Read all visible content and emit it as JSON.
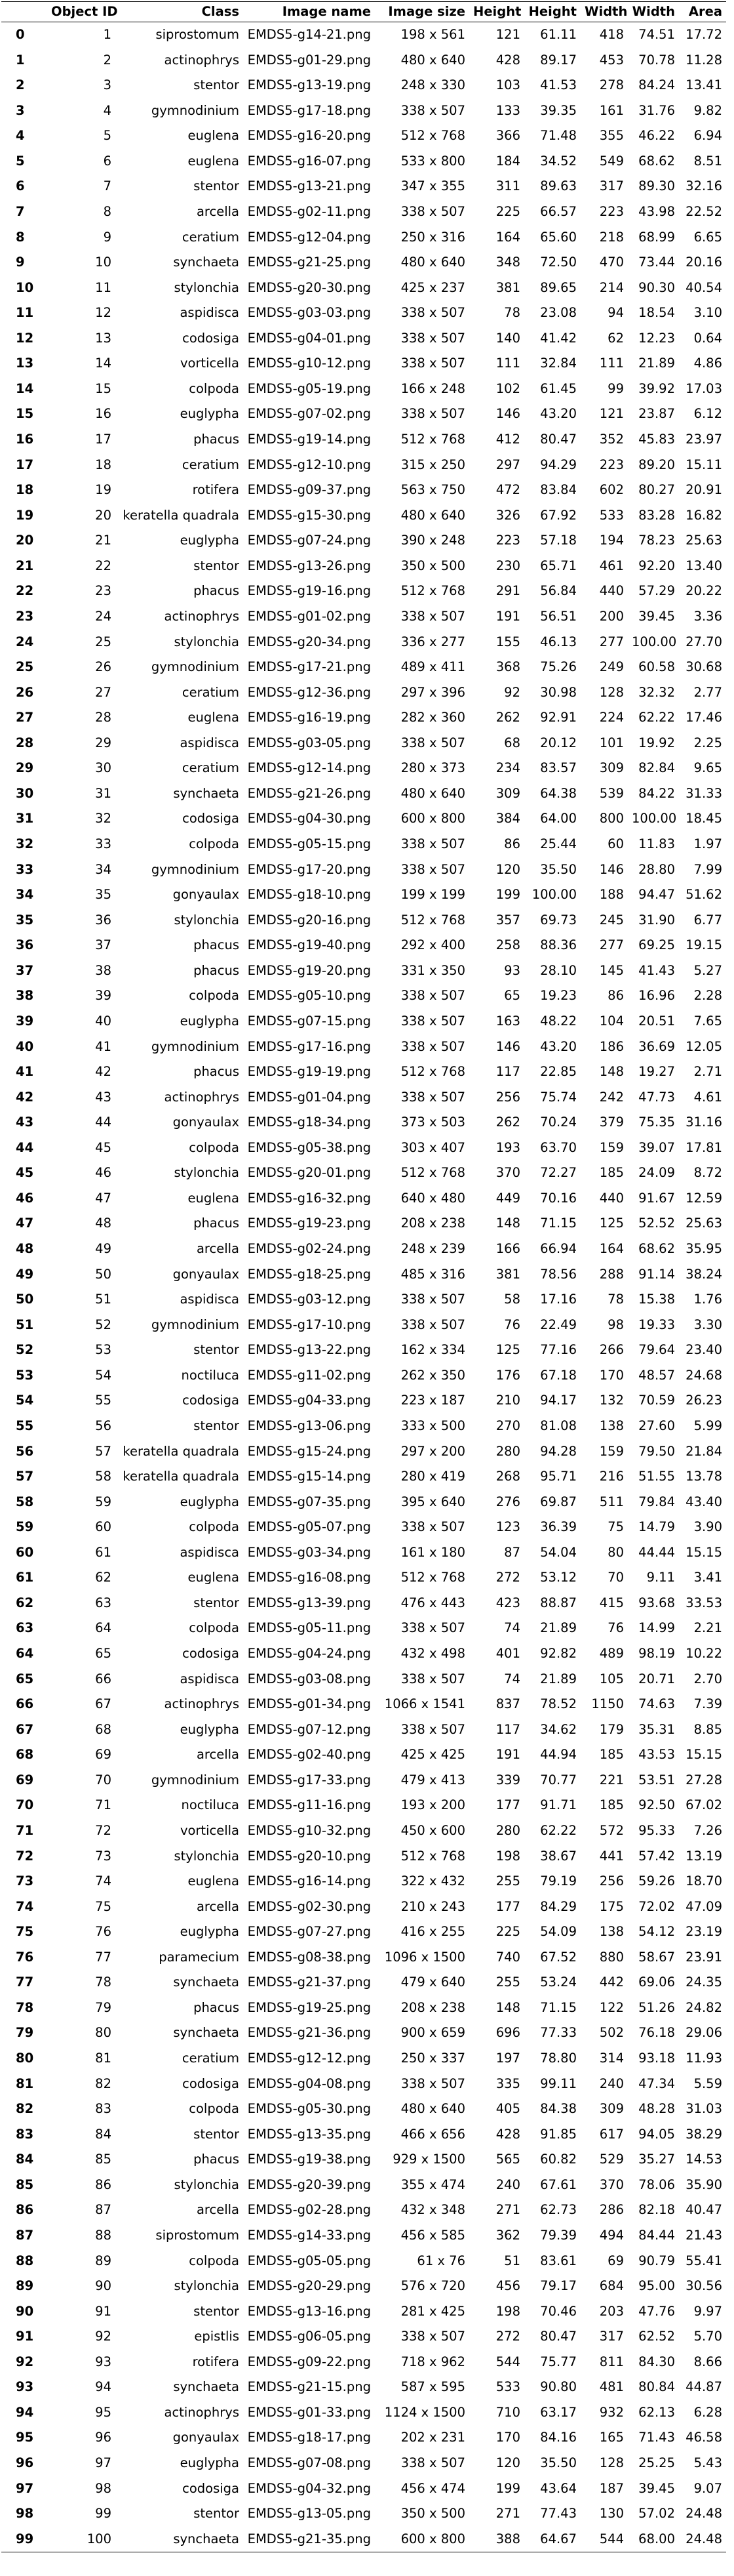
{
  "table": {
    "columns": [
      "",
      "Object ID",
      "Class",
      "Image name",
      "Image size",
      "Height",
      "Height",
      "Width",
      "Width",
      "Area"
    ],
    "rows": [
      [
        "0",
        "1",
        "siprostomum",
        "EMDS5-g14-21.png",
        "198 x 561",
        "121",
        "61.11",
        "418",
        "74.51",
        "17.72"
      ],
      [
        "1",
        "2",
        "actinophrys",
        "EMDS5-g01-29.png",
        "480 x 640",
        "428",
        "89.17",
        "453",
        "70.78",
        "11.28"
      ],
      [
        "2",
        "3",
        "stentor",
        "EMDS5-g13-19.png",
        "248 x 330",
        "103",
        "41.53",
        "278",
        "84.24",
        "13.41"
      ],
      [
        "3",
        "4",
        "gymnodinium",
        "EMDS5-g17-18.png",
        "338 x 507",
        "133",
        "39.35",
        "161",
        "31.76",
        "9.82"
      ],
      [
        "4",
        "5",
        "euglena",
        "EMDS5-g16-20.png",
        "512 x 768",
        "366",
        "71.48",
        "355",
        "46.22",
        "6.94"
      ],
      [
        "5",
        "6",
        "euglena",
        "EMDS5-g16-07.png",
        "533 x 800",
        "184",
        "34.52",
        "549",
        "68.62",
        "8.51"
      ],
      [
        "6",
        "7",
        "stentor",
        "EMDS5-g13-21.png",
        "347 x 355",
        "311",
        "89.63",
        "317",
        "89.30",
        "32.16"
      ],
      [
        "7",
        "8",
        "arcella",
        "EMDS5-g02-11.png",
        "338 x 507",
        "225",
        "66.57",
        "223",
        "43.98",
        "22.52"
      ],
      [
        "8",
        "9",
        "ceratium",
        "EMDS5-g12-04.png",
        "250 x 316",
        "164",
        "65.60",
        "218",
        "68.99",
        "6.65"
      ],
      [
        "9",
        "10",
        "synchaeta",
        "EMDS5-g21-25.png",
        "480 x 640",
        "348",
        "72.50",
        "470",
        "73.44",
        "20.16"
      ],
      [
        "10",
        "11",
        "stylonchia",
        "EMDS5-g20-30.png",
        "425 x 237",
        "381",
        "89.65",
        "214",
        "90.30",
        "40.54"
      ],
      [
        "11",
        "12",
        "aspidisca",
        "EMDS5-g03-03.png",
        "338 x 507",
        "78",
        "23.08",
        "94",
        "18.54",
        "3.10"
      ],
      [
        "12",
        "13",
        "codosiga",
        "EMDS5-g04-01.png",
        "338 x 507",
        "140",
        "41.42",
        "62",
        "12.23",
        "0.64"
      ],
      [
        "13",
        "14",
        "vorticella",
        "EMDS5-g10-12.png",
        "338 x 507",
        "111",
        "32.84",
        "111",
        "21.89",
        "4.86"
      ],
      [
        "14",
        "15",
        "colpoda",
        "EMDS5-g05-19.png",
        "166 x 248",
        "102",
        "61.45",
        "99",
        "39.92",
        "17.03"
      ],
      [
        "15",
        "16",
        "euglypha",
        "EMDS5-g07-02.png",
        "338 x 507",
        "146",
        "43.20",
        "121",
        "23.87",
        "6.12"
      ],
      [
        "16",
        "17",
        "phacus",
        "EMDS5-g19-14.png",
        "512 x 768",
        "412",
        "80.47",
        "352",
        "45.83",
        "23.97"
      ],
      [
        "17",
        "18",
        "ceratium",
        "EMDS5-g12-10.png",
        "315 x 250",
        "297",
        "94.29",
        "223",
        "89.20",
        "15.11"
      ],
      [
        "18",
        "19",
        "rotifera",
        "EMDS5-g09-37.png",
        "563 x 750",
        "472",
        "83.84",
        "602",
        "80.27",
        "20.91"
      ],
      [
        "19",
        "20",
        "keratella quadrala",
        "EMDS5-g15-30.png",
        "480 x 640",
        "326",
        "67.92",
        "533",
        "83.28",
        "16.82"
      ],
      [
        "20",
        "21",
        "euglypha",
        "EMDS5-g07-24.png",
        "390 x 248",
        "223",
        "57.18",
        "194",
        "78.23",
        "25.63"
      ],
      [
        "21",
        "22",
        "stentor",
        "EMDS5-g13-26.png",
        "350 x 500",
        "230",
        "65.71",
        "461",
        "92.20",
        "13.40"
      ],
      [
        "22",
        "23",
        "phacus",
        "EMDS5-g19-16.png",
        "512 x 768",
        "291",
        "56.84",
        "440",
        "57.29",
        "20.22"
      ],
      [
        "23",
        "24",
        "actinophrys",
        "EMDS5-g01-02.png",
        "338 x 507",
        "191",
        "56.51",
        "200",
        "39.45",
        "3.36"
      ],
      [
        "24",
        "25",
        "stylonchia",
        "EMDS5-g20-34.png",
        "336 x 277",
        "155",
        "46.13",
        "277",
        "100.00",
        "27.70"
      ],
      [
        "25",
        "26",
        "gymnodinium",
        "EMDS5-g17-21.png",
        "489 x 411",
        "368",
        "75.26",
        "249",
        "60.58",
        "30.68"
      ],
      [
        "26",
        "27",
        "ceratium",
        "EMDS5-g12-36.png",
        "297 x 396",
        "92",
        "30.98",
        "128",
        "32.32",
        "2.77"
      ],
      [
        "27",
        "28",
        "euglena",
        "EMDS5-g16-19.png",
        "282 x 360",
        "262",
        "92.91",
        "224",
        "62.22",
        "17.46"
      ],
      [
        "28",
        "29",
        "aspidisca",
        "EMDS5-g03-05.png",
        "338 x 507",
        "68",
        "20.12",
        "101",
        "19.92",
        "2.25"
      ],
      [
        "29",
        "30",
        "ceratium",
        "EMDS5-g12-14.png",
        "280 x 373",
        "234",
        "83.57",
        "309",
        "82.84",
        "9.65"
      ],
      [
        "30",
        "31",
        "synchaeta",
        "EMDS5-g21-26.png",
        "480 x 640",
        "309",
        "64.38",
        "539",
        "84.22",
        "31.33"
      ],
      [
        "31",
        "32",
        "codosiga",
        "EMDS5-g04-30.png",
        "600 x 800",
        "384",
        "64.00",
        "800",
        "100.00",
        "18.45"
      ],
      [
        "32",
        "33",
        "colpoda",
        "EMDS5-g05-15.png",
        "338 x 507",
        "86",
        "25.44",
        "60",
        "11.83",
        "1.97"
      ],
      [
        "33",
        "34",
        "gymnodinium",
        "EMDS5-g17-20.png",
        "338 x 507",
        "120",
        "35.50",
        "146",
        "28.80",
        "7.99"
      ],
      [
        "34",
        "35",
        "gonyaulax",
        "EMDS5-g18-10.png",
        "199 x 199",
        "199",
        "100.00",
        "188",
        "94.47",
        "51.62"
      ],
      [
        "35",
        "36",
        "stylonchia",
        "EMDS5-g20-16.png",
        "512 x 768",
        "357",
        "69.73",
        "245",
        "31.90",
        "6.77"
      ],
      [
        "36",
        "37",
        "phacus",
        "EMDS5-g19-40.png",
        "292 x 400",
        "258",
        "88.36",
        "277",
        "69.25",
        "19.15"
      ],
      [
        "37",
        "38",
        "phacus",
        "EMDS5-g19-20.png",
        "331 x 350",
        "93",
        "28.10",
        "145",
        "41.43",
        "5.27"
      ],
      [
        "38",
        "39",
        "colpoda",
        "EMDS5-g05-10.png",
        "338 x 507",
        "65",
        "19.23",
        "86",
        "16.96",
        "2.28"
      ],
      [
        "39",
        "40",
        "euglypha",
        "EMDS5-g07-15.png",
        "338 x 507",
        "163",
        "48.22",
        "104",
        "20.51",
        "7.65"
      ],
      [
        "40",
        "41",
        "gymnodinium",
        "EMDS5-g17-16.png",
        "338 x 507",
        "146",
        "43.20",
        "186",
        "36.69",
        "12.05"
      ],
      [
        "41",
        "42",
        "phacus",
        "EMDS5-g19-19.png",
        "512 x 768",
        "117",
        "22.85",
        "148",
        "19.27",
        "2.71"
      ],
      [
        "42",
        "43",
        "actinophrys",
        "EMDS5-g01-04.png",
        "338 x 507",
        "256",
        "75.74",
        "242",
        "47.73",
        "4.61"
      ],
      [
        "43",
        "44",
        "gonyaulax",
        "EMDS5-g18-34.png",
        "373 x 503",
        "262",
        "70.24",
        "379",
        "75.35",
        "31.16"
      ],
      [
        "44",
        "45",
        "colpoda",
        "EMDS5-g05-38.png",
        "303 x 407",
        "193",
        "63.70",
        "159",
        "39.07",
        "17.81"
      ],
      [
        "45",
        "46",
        "stylonchia",
        "EMDS5-g20-01.png",
        "512 x 768",
        "370",
        "72.27",
        "185",
        "24.09",
        "8.72"
      ],
      [
        "46",
        "47",
        "euglena",
        "EMDS5-g16-32.png",
        "640 x 480",
        "449",
        "70.16",
        "440",
        "91.67",
        "12.59"
      ],
      [
        "47",
        "48",
        "phacus",
        "EMDS5-g19-23.png",
        "208 x 238",
        "148",
        "71.15",
        "125",
        "52.52",
        "25.63"
      ],
      [
        "48",
        "49",
        "arcella",
        "EMDS5-g02-24.png",
        "248 x 239",
        "166",
        "66.94",
        "164",
        "68.62",
        "35.95"
      ],
      [
        "49",
        "50",
        "gonyaulax",
        "EMDS5-g18-25.png",
        "485 x 316",
        "381",
        "78.56",
        "288",
        "91.14",
        "38.24"
      ],
      [
        "50",
        "51",
        "aspidisca",
        "EMDS5-g03-12.png",
        "338 x 507",
        "58",
        "17.16",
        "78",
        "15.38",
        "1.76"
      ],
      [
        "51",
        "52",
        "gymnodinium",
        "EMDS5-g17-10.png",
        "338 x 507",
        "76",
        "22.49",
        "98",
        "19.33",
        "3.30"
      ],
      [
        "52",
        "53",
        "stentor",
        "EMDS5-g13-22.png",
        "162 x 334",
        "125",
        "77.16",
        "266",
        "79.64",
        "23.40"
      ],
      [
        "53",
        "54",
        "noctiluca",
        "EMDS5-g11-02.png",
        "262 x 350",
        "176",
        "67.18",
        "170",
        "48.57",
        "24.68"
      ],
      [
        "54",
        "55",
        "codosiga",
        "EMDS5-g04-33.png",
        "223 x 187",
        "210",
        "94.17",
        "132",
        "70.59",
        "26.23"
      ],
      [
        "55",
        "56",
        "stentor",
        "EMDS5-g13-06.png",
        "333 x 500",
        "270",
        "81.08",
        "138",
        "27.60",
        "5.99"
      ],
      [
        "56",
        "57",
        "keratella quadrala",
        "EMDS5-g15-24.png",
        "297 x 200",
        "280",
        "94.28",
        "159",
        "79.50",
        "21.84"
      ],
      [
        "57",
        "58",
        "keratella quadrala",
        "EMDS5-g15-14.png",
        "280 x 419",
        "268",
        "95.71",
        "216",
        "51.55",
        "13.78"
      ],
      [
        "58",
        "59",
        "euglypha",
        "EMDS5-g07-35.png",
        "395 x 640",
        "276",
        "69.87",
        "511",
        "79.84",
        "43.40"
      ],
      [
        "59",
        "60",
        "colpoda",
        "EMDS5-g05-07.png",
        "338 x 507",
        "123",
        "36.39",
        "75",
        "14.79",
        "3.90"
      ],
      [
        "60",
        "61",
        "aspidisca",
        "EMDS5-g03-34.png",
        "161 x 180",
        "87",
        "54.04",
        "80",
        "44.44",
        "15.15"
      ],
      [
        "61",
        "62",
        "euglena",
        "EMDS5-g16-08.png",
        "512 x 768",
        "272",
        "53.12",
        "70",
        "9.11",
        "3.41"
      ],
      [
        "62",
        "63",
        "stentor",
        "EMDS5-g13-39.png",
        "476 x 443",
        "423",
        "88.87",
        "415",
        "93.68",
        "33.53"
      ],
      [
        "63",
        "64",
        "colpoda",
        "EMDS5-g05-11.png",
        "338 x 507",
        "74",
        "21.89",
        "76",
        "14.99",
        "2.21"
      ],
      [
        "64",
        "65",
        "codosiga",
        "EMDS5-g04-24.png",
        "432 x 498",
        "401",
        "92.82",
        "489",
        "98.19",
        "10.22"
      ],
      [
        "65",
        "66",
        "aspidisca",
        "EMDS5-g03-08.png",
        "338 x 507",
        "74",
        "21.89",
        "105",
        "20.71",
        "2.70"
      ],
      [
        "66",
        "67",
        "actinophrys",
        "EMDS5-g01-34.png",
        "1066 x 1541",
        "837",
        "78.52",
        "1150",
        "74.63",
        "7.39"
      ],
      [
        "67",
        "68",
        "euglypha",
        "EMDS5-g07-12.png",
        "338 x 507",
        "117",
        "34.62",
        "179",
        "35.31",
        "8.85"
      ],
      [
        "68",
        "69",
        "arcella",
        "EMDS5-g02-40.png",
        "425 x 425",
        "191",
        "44.94",
        "185",
        "43.53",
        "15.15"
      ],
      [
        "69",
        "70",
        "gymnodinium",
        "EMDS5-g17-33.png",
        "479 x 413",
        "339",
        "70.77",
        "221",
        "53.51",
        "27.28"
      ],
      [
        "70",
        "71",
        "noctiluca",
        "EMDS5-g11-16.png",
        "193 x 200",
        "177",
        "91.71",
        "185",
        "92.50",
        "67.02"
      ],
      [
        "71",
        "72",
        "vorticella",
        "EMDS5-g10-32.png",
        "450 x 600",
        "280",
        "62.22",
        "572",
        "95.33",
        "7.26"
      ],
      [
        "72",
        "73",
        "stylonchia",
        "EMDS5-g20-10.png",
        "512 x 768",
        "198",
        "38.67",
        "441",
        "57.42",
        "13.19"
      ],
      [
        "73",
        "74",
        "euglena",
        "EMDS5-g16-14.png",
        "322 x 432",
        "255",
        "79.19",
        "256",
        "59.26",
        "18.70"
      ],
      [
        "74",
        "75",
        "arcella",
        "EMDS5-g02-30.png",
        "210 x 243",
        "177",
        "84.29",
        "175",
        "72.02",
        "47.09"
      ],
      [
        "75",
        "76",
        "euglypha",
        "EMDS5-g07-27.png",
        "416 x 255",
        "225",
        "54.09",
        "138",
        "54.12",
        "23.19"
      ],
      [
        "76",
        "77",
        "paramecium",
        "EMDS5-g08-38.png",
        "1096 x 1500",
        "740",
        "67.52",
        "880",
        "58.67",
        "23.91"
      ],
      [
        "77",
        "78",
        "synchaeta",
        "EMDS5-g21-37.png",
        "479 x 640",
        "255",
        "53.24",
        "442",
        "69.06",
        "24.35"
      ],
      [
        "78",
        "79",
        "phacus",
        "EMDS5-g19-25.png",
        "208 x 238",
        "148",
        "71.15",
        "122",
        "51.26",
        "24.82"
      ],
      [
        "79",
        "80",
        "synchaeta",
        "EMDS5-g21-36.png",
        "900 x 659",
        "696",
        "77.33",
        "502",
        "76.18",
        "29.06"
      ],
      [
        "80",
        "81",
        "ceratium",
        "EMDS5-g12-12.png",
        "250 x 337",
        "197",
        "78.80",
        "314",
        "93.18",
        "11.93"
      ],
      [
        "81",
        "82",
        "codosiga",
        "EMDS5-g04-08.png",
        "338 x 507",
        "335",
        "99.11",
        "240",
        "47.34",
        "5.59"
      ],
      [
        "82",
        "83",
        "colpoda",
        "EMDS5-g05-30.png",
        "480 x 640",
        "405",
        "84.38",
        "309",
        "48.28",
        "31.03"
      ],
      [
        "83",
        "84",
        "stentor",
        "EMDS5-g13-35.png",
        "466 x 656",
        "428",
        "91.85",
        "617",
        "94.05",
        "38.29"
      ],
      [
        "84",
        "85",
        "phacus",
        "EMDS5-g19-38.png",
        "929 x 1500",
        "565",
        "60.82",
        "529",
        "35.27",
        "14.53"
      ],
      [
        "85",
        "86",
        "stylonchia",
        "EMDS5-g20-39.png",
        "355 x 474",
        "240",
        "67.61",
        "370",
        "78.06",
        "35.90"
      ],
      [
        "86",
        "87",
        "arcella",
        "EMDS5-g02-28.png",
        "432 x 348",
        "271",
        "62.73",
        "286",
        "82.18",
        "40.47"
      ],
      [
        "87",
        "88",
        "siprostomum",
        "EMDS5-g14-33.png",
        "456 x 585",
        "362",
        "79.39",
        "494",
        "84.44",
        "21.43"
      ],
      [
        "88",
        "89",
        "colpoda",
        "EMDS5-g05-05.png",
        "61 x 76",
        "51",
        "83.61",
        "69",
        "90.79",
        "55.41"
      ],
      [
        "89",
        "90",
        "stylonchia",
        "EMDS5-g20-29.png",
        "576 x 720",
        "456",
        "79.17",
        "684",
        "95.00",
        "30.56"
      ],
      [
        "90",
        "91",
        "stentor",
        "EMDS5-g13-16.png",
        "281 x 425",
        "198",
        "70.46",
        "203",
        "47.76",
        "9.97"
      ],
      [
        "91",
        "92",
        "epistlis",
        "EMDS5-g06-05.png",
        "338 x 507",
        "272",
        "80.47",
        "317",
        "62.52",
        "5.70"
      ],
      [
        "92",
        "93",
        "rotifera",
        "EMDS5-g09-22.png",
        "718 x 962",
        "544",
        "75.77",
        "811",
        "84.30",
        "8.66"
      ],
      [
        "93",
        "94",
        "synchaeta",
        "EMDS5-g21-15.png",
        "587 x 595",
        "533",
        "90.80",
        "481",
        "80.84",
        "44.87"
      ],
      [
        "94",
        "95",
        "actinophrys",
        "EMDS5-g01-33.png",
        "1124 x 1500",
        "710",
        "63.17",
        "932",
        "62.13",
        "6.28"
      ],
      [
        "95",
        "96",
        "gonyaulax",
        "EMDS5-g18-17.png",
        "202 x 231",
        "170",
        "84.16",
        "165",
        "71.43",
        "46.58"
      ],
      [
        "96",
        "97",
        "euglypha",
        "EMDS5-g07-08.png",
        "338 x 507",
        "120",
        "35.50",
        "128",
        "25.25",
        "5.43"
      ],
      [
        "97",
        "98",
        "codosiga",
        "EMDS5-g04-32.png",
        "456 x 474",
        "199",
        "43.64",
        "187",
        "39.45",
        "9.07"
      ],
      [
        "98",
        "99",
        "stentor",
        "EMDS5-g13-05.png",
        "350 x 500",
        "271",
        "77.43",
        "130",
        "57.02",
        "24.48"
      ],
      [
        "99",
        "100",
        "synchaeta",
        "EMDS5-g21-35.png",
        "600 x 800",
        "388",
        "64.67",
        "544",
        "68.00",
        "24.48"
      ]
    ]
  }
}
